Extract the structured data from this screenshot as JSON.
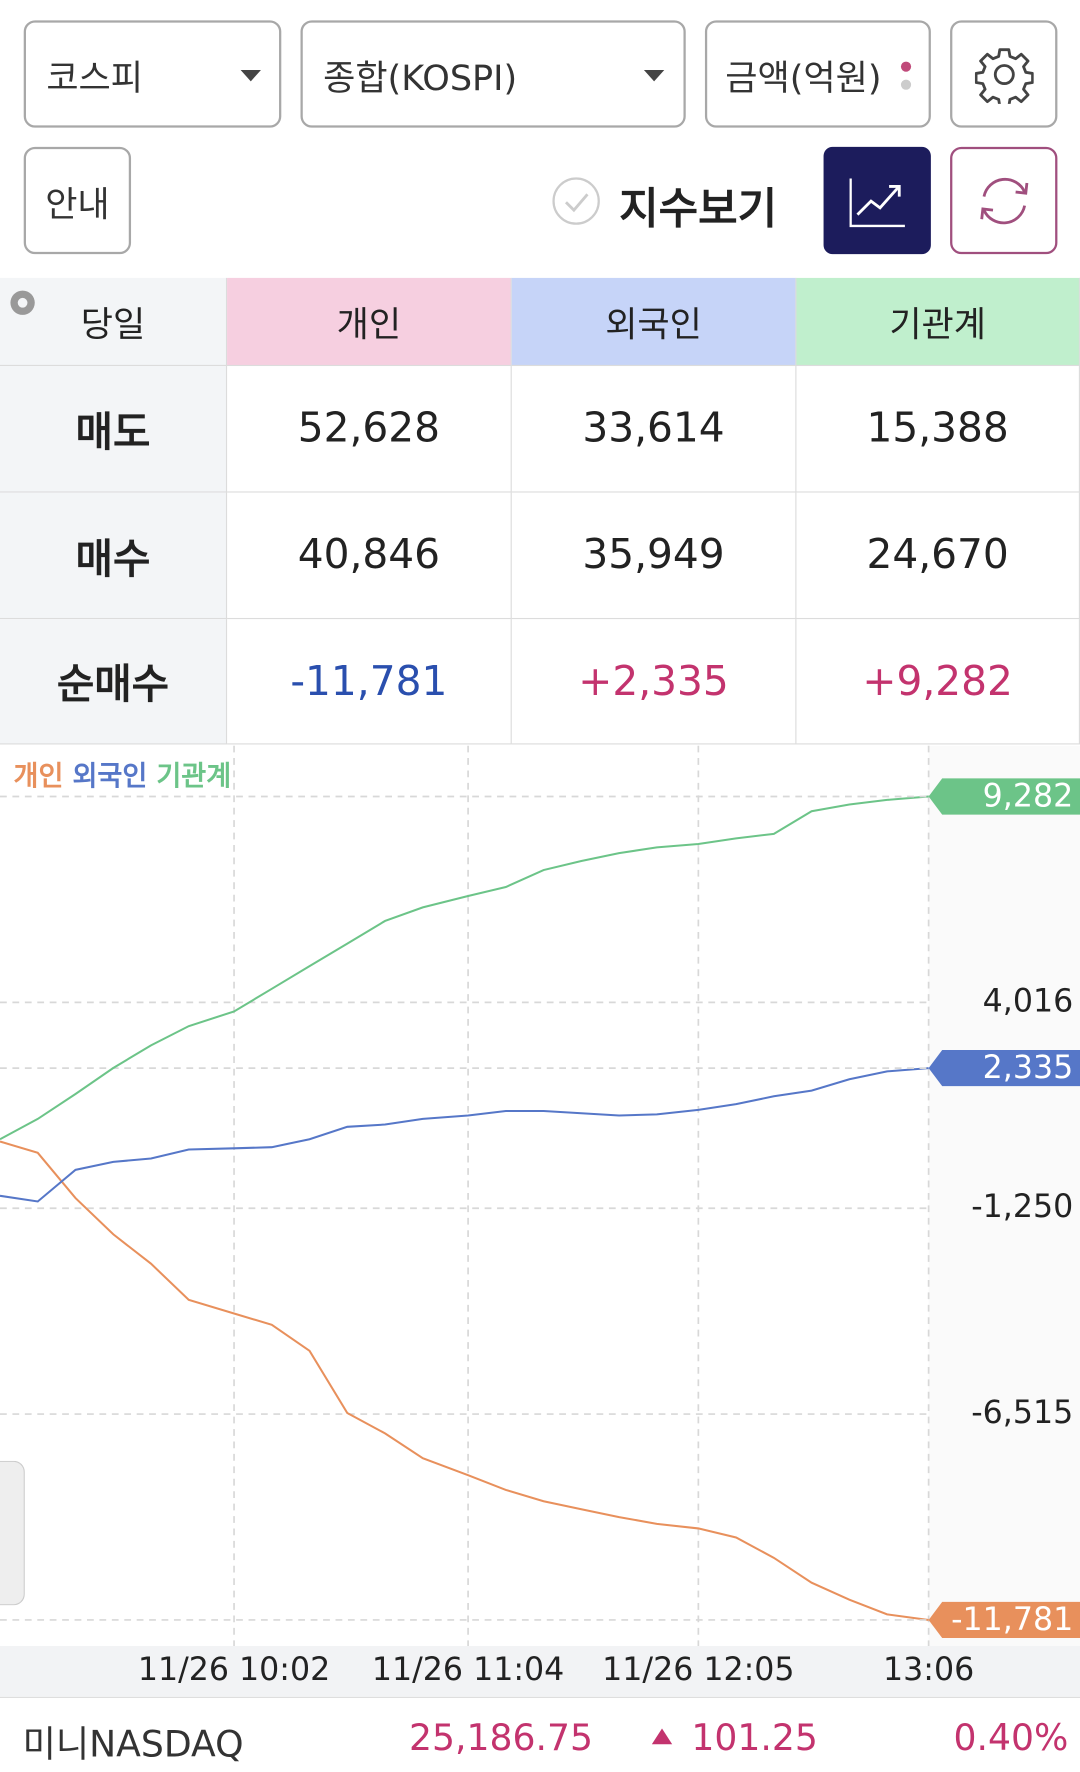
{
  "controls": {
    "market": "코스피",
    "index": "종합(KOSPI)",
    "unit": "금액(억원)",
    "guide": "안내",
    "index_toggle": "지수보기"
  },
  "table": {
    "corner": "당일",
    "columns": [
      "개인",
      "외국인",
      "기관계"
    ],
    "rows": [
      {
        "label": "매도",
        "cells": [
          "52,628",
          "33,614",
          "15,388"
        ]
      },
      {
        "label": "매수",
        "cells": [
          "40,846",
          "35,949",
          "24,670"
        ]
      },
      {
        "label": "순매수",
        "cells": [
          "-11,781",
          "+2,335",
          "+9,282"
        ]
      }
    ]
  },
  "chart_data": {
    "type": "line",
    "x": [
      "11/26 09:00",
      "11/26 09:10",
      "11/26 09:20",
      "11/26 09:30",
      "11/26 09:40",
      "11/26 09:50",
      "11/26 10:02",
      "11/26 10:12",
      "11/26 10:22",
      "11/26 10:32",
      "11/26 10:42",
      "11/26 10:52",
      "11/26 11:04",
      "11/26 11:14",
      "11/26 11:24",
      "11/26 11:34",
      "11/26 11:44",
      "11/26 11:54",
      "11/26 12:05",
      "11/26 12:15",
      "11/26 12:25",
      "11/26 12:35",
      "11/26 12:45",
      "11/26 12:55",
      "11/26 13:06"
    ],
    "series": [
      {
        "name": "개인",
        "color": "#e8905c",
        "values": [
          457,
          168,
          -990,
          -1916,
          -2668,
          -3594,
          -3942,
          -4231,
          -4896,
          -6488,
          -7009,
          -7645,
          -8079,
          -8455,
          -8745,
          -8948,
          -9150,
          -9324,
          -9440,
          -9671,
          -10192,
          -10828,
          -11262,
          -11638,
          -11781
        ],
        "value_labels": [
          null,
          null,
          null,
          null,
          null,
          null,
          null,
          null,
          null,
          null,
          null,
          null,
          null,
          null,
          null,
          null,
          null,
          null,
          null,
          null,
          null,
          null,
          null,
          null,
          "-11,781"
        ]
      },
      {
        "name": "외국인",
        "color": "#5677c8",
        "values": [
          -932,
          -1077,
          -267,
          -64,
          23,
          254,
          283,
          312,
          515,
          833,
          891,
          1035,
          1122,
          1238,
          1238,
          1180,
          1122,
          1151,
          1267,
          1412,
          1614,
          1759,
          2049,
          2251,
          2335
        ],
        "value_labels": [
          null,
          null,
          null,
          null,
          null,
          null,
          null,
          null,
          null,
          null,
          null,
          null,
          null,
          null,
          null,
          null,
          null,
          null,
          null,
          null,
          null,
          null,
          null,
          null,
          "2,335"
        ]
      },
      {
        "name": "기관계",
        "color": "#6cc488",
        "values": [
          515,
          1035,
          1672,
          2338,
          2916,
          3408,
          3784,
          4363,
          4942,
          5520,
          6099,
          6446,
          6736,
          6967,
          7401,
          7633,
          7835,
          7980,
          8067,
          8211,
          8327,
          8906,
          9079,
          9195,
          9282
        ],
        "value_labels": [
          null,
          null,
          null,
          null,
          null,
          null,
          null,
          null,
          null,
          null,
          null,
          null,
          null,
          null,
          null,
          null,
          null,
          null,
          null,
          null,
          null,
          null,
          null,
          null,
          "9,282"
        ]
      }
    ],
    "ylim": [
      -12447,
      10584
    ],
    "yticks": [
      {
        "value": 4016,
        "label": "4,016"
      },
      {
        "value": -1250,
        "label": "-1,250"
      },
      {
        "value": -6515,
        "label": "-6,515"
      }
    ],
    "xticks": [
      {
        "value": "11/26 10:02",
        "label": "11/26 10:02"
      },
      {
        "value": "11/26 11:04",
        "label": "11/26 11:04"
      },
      {
        "value": "11/26 12:05",
        "label": "11/26 12:05"
      },
      {
        "value": "11/26 13:06",
        "label": "13:06"
      }
    ],
    "grid": true
  },
  "ticker": {
    "name": "미니NASDAQ",
    "price": "25,186.75",
    "change": "101.25",
    "change_pct": "0.40%"
  }
}
